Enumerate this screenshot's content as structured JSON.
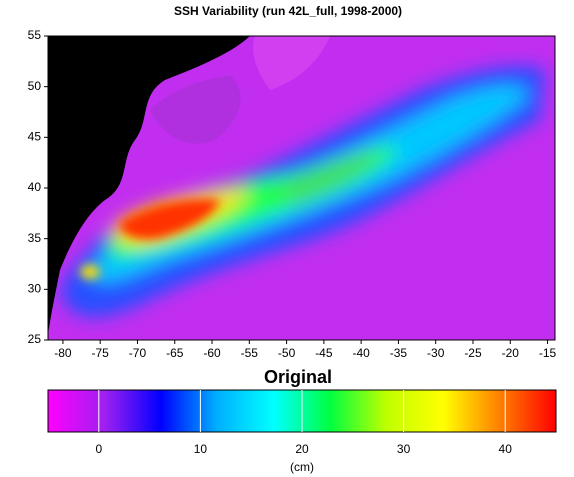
{
  "chart_data": {
    "type": "heatmap",
    "title": "SSH Variability (run 42L_full, 1998-2000)",
    "annotation": "Original",
    "xlim": [
      -82,
      -14
    ],
    "xticks": [
      -80,
      -75,
      -70,
      -65,
      -60,
      -55,
      -50,
      -45,
      -40,
      -35,
      -30,
      -25,
      -20,
      -15
    ],
    "ylim": [
      25,
      55
    ],
    "yticks": [
      25,
      30,
      35,
      40,
      45,
      50,
      55
    ],
    "colorbar": {
      "lim": [
        -5,
        45
      ],
      "ticks": [
        0,
        10,
        20,
        30,
        40
      ],
      "label": "(cm)",
      "colors": [
        "#ff00ff",
        "#a020f0",
        "#0000ff",
        "#00b0ff",
        "#00ffff",
        "#00ff40",
        "#c0ff00",
        "#ffff00",
        "#ff8000",
        "#ff0000"
      ]
    }
  }
}
